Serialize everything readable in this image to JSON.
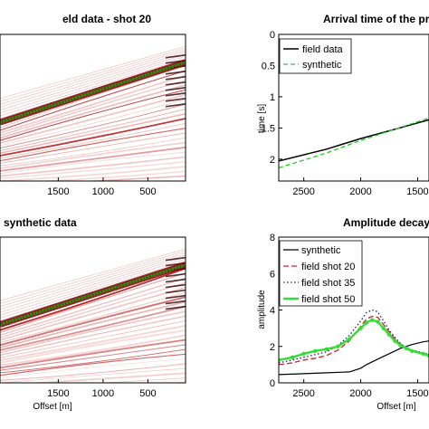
{
  "chart_data": [
    {
      "type": "heatmap",
      "title": "eld data - shot 20",
      "xlabel": "",
      "x_ticks": [
        "1500",
        "1000",
        "500"
      ],
      "x_tick_values": [
        1500,
        1000,
        500
      ],
      "x_range": [
        2150,
        80
      ],
      "colormap": [
        "#ffffff",
        "#cc0000",
        "#000000"
      ],
      "picked_arrival_color": "#00b000",
      "arrival_line": {
        "offset": [
          2150,
          80
        ],
        "time": [
          1.62,
          0.42
        ]
      }
    },
    {
      "type": "heatmap",
      "title": "synthetic data",
      "xlabel": "Offset [m]",
      "x_ticks": [
        "1500",
        "1000",
        "500"
      ],
      "x_tick_values": [
        1500,
        1000,
        500
      ],
      "x_range": [
        2150,
        80
      ],
      "colormap": [
        "#ffffff",
        "#cc0000",
        "#000000"
      ],
      "picked_arrival_color": "#00b000",
      "arrival_line": {
        "offset": [
          2150,
          80
        ],
        "time": [
          1.62,
          0.42
        ]
      }
    },
    {
      "type": "line",
      "title": "Arrival time of the pr",
      "xlabel": "",
      "ylabel": "time [s]",
      "xlim": [
        2720,
        1400
      ],
      "ylim": [
        0,
        2.35
      ],
      "x_ticks": [
        "2500",
        "2000",
        "1500"
      ],
      "x_tick_values": [
        2500,
        2000,
        1500
      ],
      "y_ticks": [
        "0",
        "0.5",
        "1",
        "1.5",
        "2"
      ],
      "y_tick_values": [
        0,
        0.5,
        1,
        1.5,
        2
      ],
      "legend": "top-left",
      "series": [
        {
          "name": "field data",
          "color": "#000000",
          "dash": "none",
          "width": 1.5,
          "x": [
            2720,
            2300,
            2000,
            1700,
            1400
          ],
          "y": [
            2.03,
            1.84,
            1.67,
            1.52,
            1.37
          ]
        },
        {
          "name": "synthetic",
          "color": "#22cc22",
          "dash": "5,3",
          "width": 1.3,
          "x": [
            2720,
            2300,
            2000,
            1700,
            1400
          ],
          "y": [
            2.14,
            1.9,
            1.7,
            1.52,
            1.34
          ]
        }
      ]
    },
    {
      "type": "line",
      "title": "Amplitude decay",
      "xlabel": "Offset [m]",
      "ylabel": "amplitude",
      "xlim": [
        2720,
        1400
      ],
      "ylim": [
        0,
        8
      ],
      "x_ticks": [
        "2500",
        "2000",
        "1500"
      ],
      "x_tick_values": [
        2500,
        2000,
        1500
      ],
      "y_ticks": [
        "0",
        "2",
        "4",
        "6",
        "8"
      ],
      "y_tick_values": [
        0,
        2,
        4,
        6,
        8
      ],
      "legend": "top-right",
      "series": [
        {
          "name": "synthetic",
          "color": "#000000",
          "dash": "none",
          "width": 1.2,
          "x": [
            2720,
            2500,
            2300,
            2100,
            2000,
            1950,
            1850,
            1750,
            1650,
            1550,
            1450,
            1400
          ],
          "y": [
            0.45,
            0.5,
            0.55,
            0.6,
            0.8,
            1.0,
            1.3,
            1.6,
            1.9,
            2.1,
            2.25,
            2.3
          ]
        },
        {
          "name": "field shot 20",
          "color": "#cc2222",
          "dash": "6,3",
          "width": 1.3,
          "x": [
            2720,
            2600,
            2500,
            2400,
            2300,
            2200,
            2100,
            2000,
            1950,
            1900,
            1850,
            1800,
            1750,
            1700,
            1650,
            1600,
            1550,
            1450,
            1400
          ],
          "y": [
            1.0,
            1.1,
            1.25,
            1.35,
            1.5,
            1.8,
            2.3,
            3.1,
            3.5,
            3.65,
            3.6,
            3.2,
            2.8,
            2.4,
            2.1,
            1.9,
            1.75,
            1.6,
            1.5
          ]
        },
        {
          "name": "field shot 35",
          "color": "#1a1a66",
          "dash": "1.5,2.5",
          "width": 1.3,
          "x": [
            2720,
            2600,
            2500,
            2400,
            2300,
            2200,
            2100,
            2000,
            1950,
            1900,
            1850,
            1800,
            1750,
            1700,
            1650,
            1600,
            1550,
            1450,
            1400
          ],
          "y": [
            1.1,
            1.25,
            1.4,
            1.55,
            1.7,
            2.05,
            2.6,
            3.4,
            3.85,
            4.0,
            3.9,
            3.4,
            2.9,
            2.5,
            2.15,
            1.95,
            1.8,
            1.65,
            1.55
          ]
        },
        {
          "name": "field shot 50",
          "color": "#33dd33",
          "dash": "none",
          "width": 2.4,
          "x": [
            2720,
            2600,
            2500,
            2400,
            2300,
            2200,
            2100,
            2000,
            1950,
            1900,
            1850,
            1800,
            1750,
            1700,
            1650,
            1600,
            1550,
            1450,
            1400
          ],
          "y": [
            1.25,
            1.4,
            1.6,
            1.75,
            1.85,
            2.0,
            2.4,
            3.0,
            3.3,
            3.45,
            3.35,
            3.0,
            2.65,
            2.3,
            2.05,
            1.9,
            1.75,
            1.6,
            1.5
          ]
        }
      ]
    }
  ]
}
